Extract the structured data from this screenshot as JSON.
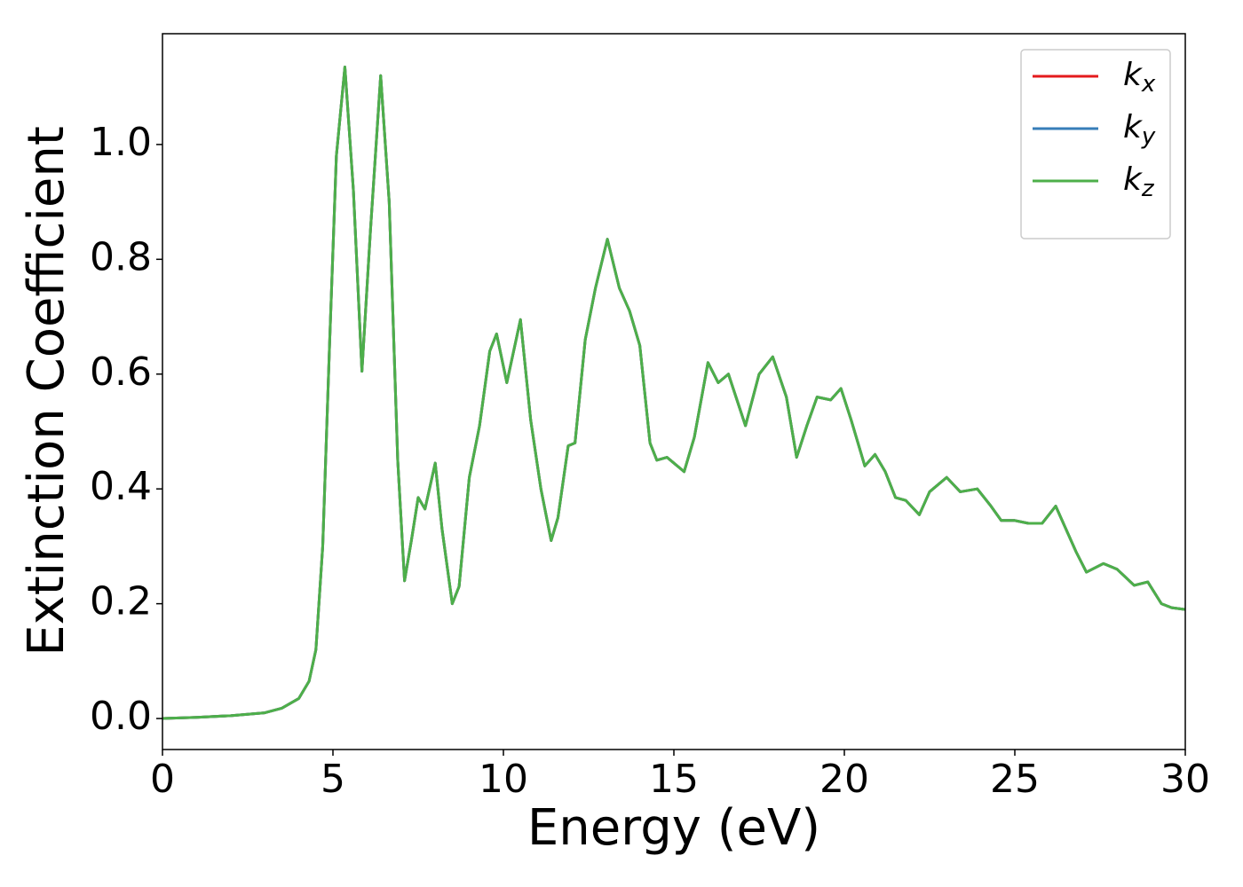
{
  "chart_data": {
    "type": "line",
    "xlabel": "Energy (eV)",
    "ylabel": "Extinction Coefficient",
    "x": [
      0,
      1,
      2,
      3,
      3.5,
      4,
      4.3,
      4.5,
      4.7,
      4.9,
      5.1,
      5.35,
      5.6,
      5.85,
      6.1,
      6.4,
      6.65,
      6.9,
      7.1,
      7.3,
      7.5,
      7.7,
      8.0,
      8.2,
      8.5,
      8.7,
      9.0,
      9.3,
      9.6,
      9.8,
      10.1,
      10.5,
      10.8,
      11.1,
      11.4,
      11.6,
      11.9,
      12.1,
      12.4,
      12.7,
      13.05,
      13.4,
      13.7,
      14.0,
      14.3,
      14.5,
      14.8,
      15.0,
      15.3,
      15.6,
      16.0,
      16.3,
      16.6,
      17.1,
      17.5,
      17.9,
      18.3,
      18.6,
      18.9,
      19.2,
      19.6,
      19.9,
      20.2,
      20.6,
      20.9,
      21.2,
      21.5,
      21.8,
      22.2,
      22.5,
      23.0,
      23.4,
      23.9,
      24.3,
      24.6,
      25.0,
      25.4,
      25.8,
      26.2,
      26.5,
      26.8,
      27.1,
      27.6,
      28.0,
      28.5,
      28.9,
      29.3,
      29.6,
      30
    ],
    "series": [
      {
        "name": "kx",
        "color": "#e41a1c",
        "values": [
          0,
          0.002,
          0.005,
          0.01,
          0.018,
          0.035,
          0.065,
          0.12,
          0.3,
          0.65,
          0.98,
          1.135,
          0.92,
          0.605,
          0.85,
          1.12,
          0.9,
          0.45,
          0.24,
          0.31,
          0.385,
          0.365,
          0.445,
          0.33,
          0.2,
          0.23,
          0.42,
          0.51,
          0.64,
          0.67,
          0.585,
          0.695,
          0.52,
          0.4,
          0.31,
          0.35,
          0.475,
          0.48,
          0.66,
          0.75,
          0.835,
          0.75,
          0.71,
          0.65,
          0.48,
          0.45,
          0.455,
          0.445,
          0.43,
          0.49,
          0.62,
          0.585,
          0.6,
          0.51,
          0.6,
          0.63,
          0.56,
          0.455,
          0.51,
          0.56,
          0.555,
          0.575,
          0.52,
          0.44,
          0.46,
          0.43,
          0.385,
          0.38,
          0.355,
          0.395,
          0.42,
          0.395,
          0.4,
          0.37,
          0.345,
          0.345,
          0.34,
          0.34,
          0.37,
          0.33,
          0.29,
          0.255,
          0.27,
          0.26,
          0.232,
          0.238,
          0.2,
          0.193,
          0.19
        ]
      },
      {
        "name": "ky",
        "color": "#377eb8",
        "values": [
          0,
          0.002,
          0.005,
          0.01,
          0.018,
          0.035,
          0.065,
          0.12,
          0.3,
          0.65,
          0.98,
          1.135,
          0.92,
          0.605,
          0.85,
          1.12,
          0.9,
          0.45,
          0.24,
          0.31,
          0.385,
          0.365,
          0.445,
          0.33,
          0.2,
          0.23,
          0.42,
          0.51,
          0.64,
          0.67,
          0.585,
          0.695,
          0.52,
          0.4,
          0.31,
          0.35,
          0.475,
          0.48,
          0.66,
          0.75,
          0.835,
          0.75,
          0.71,
          0.65,
          0.48,
          0.45,
          0.455,
          0.445,
          0.43,
          0.49,
          0.62,
          0.585,
          0.6,
          0.51,
          0.6,
          0.63,
          0.56,
          0.455,
          0.51,
          0.56,
          0.555,
          0.575,
          0.52,
          0.44,
          0.46,
          0.43,
          0.385,
          0.38,
          0.355,
          0.395,
          0.42,
          0.395,
          0.4,
          0.37,
          0.345,
          0.345,
          0.34,
          0.34,
          0.37,
          0.33,
          0.29,
          0.255,
          0.27,
          0.26,
          0.232,
          0.238,
          0.2,
          0.193,
          0.19
        ]
      },
      {
        "name": "kz",
        "color": "#4daf4a",
        "values": [
          0,
          0.002,
          0.005,
          0.01,
          0.018,
          0.035,
          0.065,
          0.12,
          0.3,
          0.65,
          0.98,
          1.135,
          0.92,
          0.605,
          0.85,
          1.12,
          0.9,
          0.45,
          0.24,
          0.31,
          0.385,
          0.365,
          0.445,
          0.33,
          0.2,
          0.23,
          0.42,
          0.51,
          0.64,
          0.67,
          0.585,
          0.695,
          0.52,
          0.4,
          0.31,
          0.35,
          0.475,
          0.48,
          0.66,
          0.75,
          0.835,
          0.75,
          0.71,
          0.65,
          0.48,
          0.45,
          0.455,
          0.445,
          0.43,
          0.49,
          0.62,
          0.585,
          0.6,
          0.51,
          0.6,
          0.63,
          0.56,
          0.455,
          0.51,
          0.56,
          0.555,
          0.575,
          0.52,
          0.44,
          0.46,
          0.43,
          0.385,
          0.38,
          0.355,
          0.395,
          0.42,
          0.395,
          0.4,
          0.37,
          0.345,
          0.345,
          0.34,
          0.34,
          0.37,
          0.33,
          0.29,
          0.255,
          0.27,
          0.26,
          0.232,
          0.238,
          0.2,
          0.193,
          0.19
        ]
      }
    ],
    "xlim": [
      0,
      30
    ],
    "xticks": [
      0,
      5,
      10,
      15,
      20,
      25,
      30
    ],
    "ylim": [
      -0.054,
      1.193
    ],
    "yticks": [
      {
        "value": 0,
        "label": "0.0"
      },
      0.2,
      0.4,
      0.6,
      0.8,
      {
        "value": 1,
        "label": "1.0"
      }
    ],
    "grid": false,
    "legend": "upper right"
  }
}
